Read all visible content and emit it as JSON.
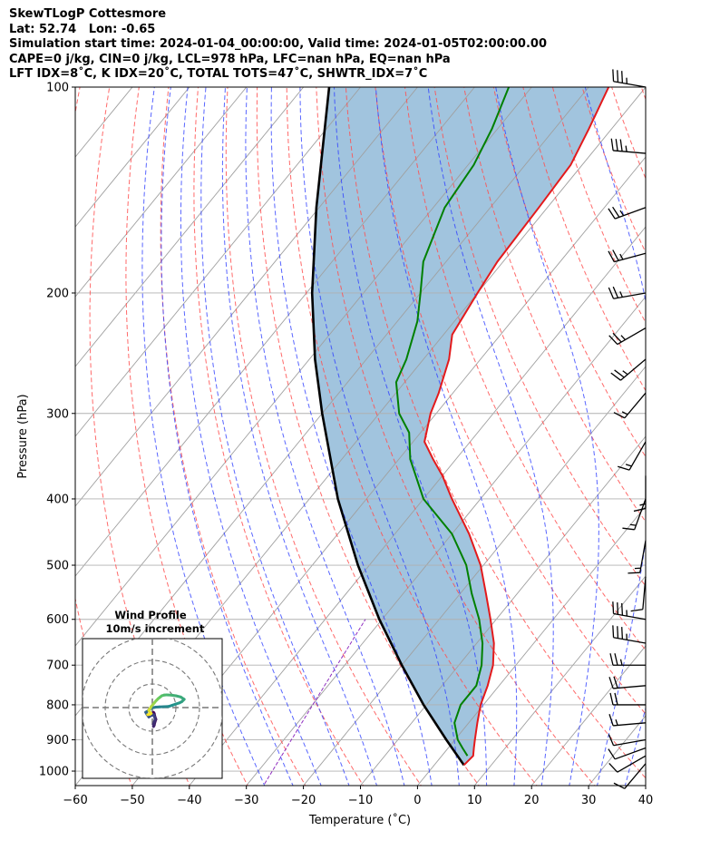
{
  "header": {
    "line1": "SkewTLogP Cottesmore",
    "line2": "Lat: 52.74   Lon: -0.65",
    "line3": "Simulation start time: 2024-01-04_00:00:00, Valid time: 2024-01-05T02:00:00.00",
    "line4": "CAPE=0 j/kg, CIN=0 j/kg, LCL=978 hPa, LFC=nan hPa, EQ=nan hPa",
    "line5": "LFT IDX=8˚C, K IDX=20˚C, TOTAL TOTS=47˚C, SHWTR_IDX=7˚C"
  },
  "colors": {
    "temperature": "#e31a1c",
    "dewpoint": "#008000",
    "parcel": "#000000",
    "shade": "#a1c4de",
    "dry_adiabat": "#ff5050",
    "moist_adiabat": "#3040ff",
    "mixing_ratio": "#9030c0",
    "isotherm": "#a0a0a0",
    "grid": "#b0b0b0"
  },
  "chart_data": {
    "type": "skewt",
    "xlabel": "Temperature (˚C)",
    "ylabel": "Pressure (hPa)",
    "xlim": [
      -60,
      40
    ],
    "ylim": [
      1050,
      100
    ],
    "x_ticks": [
      -60,
      -50,
      -40,
      -30,
      -20,
      -10,
      0,
      10,
      20,
      30,
      40
    ],
    "p_ticks": [
      1000,
      900,
      800,
      700,
      600,
      500,
      400,
      300,
      200,
      100
    ],
    "temperature": {
      "p": [
        980,
        950,
        925,
        900,
        850,
        800,
        750,
        700,
        650,
        600,
        550,
        500,
        450,
        400,
        370,
        350,
        330,
        300,
        280,
        250,
        230,
        200,
        180,
        150,
        130,
        115,
        100
      ],
      "t": [
        5.2,
        5.5,
        4.5,
        3.5,
        1.5,
        -0.5,
        -2.0,
        -4.0,
        -7.0,
        -11.0,
        -15.5,
        -20.5,
        -27.0,
        -35.0,
        -40.0,
        -44.0,
        -48.0,
        -51.0,
        -52.5,
        -55.5,
        -58.5,
        -60.0,
        -61.0,
        -61.5,
        -62.0,
        -64.0,
        -66.5
      ]
    },
    "dewpoint": {
      "p": [
        950,
        925,
        900,
        850,
        800,
        750,
        700,
        650,
        600,
        550,
        500,
        450,
        400,
        350,
        320,
        300,
        270,
        250,
        220,
        200,
        180,
        150,
        130,
        115,
        100
      ],
      "td": [
        4.5,
        2.5,
        0.5,
        -2.5,
        -4.0,
        -4.0,
        -6.0,
        -9.0,
        -13.0,
        -18.0,
        -23.0,
        -30.0,
        -40.0,
        -48.0,
        -52.0,
        -56.5,
        -61.5,
        -63.0,
        -66.5,
        -70.0,
        -74.0,
        -78.0,
        -79.0,
        -81.0,
        -84.0
      ]
    },
    "parcel": {
      "p": [
        980,
        900,
        800,
        700,
        600,
        500,
        400,
        300,
        250,
        200,
        150,
        100
      ],
      "t": [
        5.2,
        -1.5,
        -10.5,
        -20.0,
        -30.5,
        -42.0,
        -55.0,
        -70.0,
        -79.0,
        -89.0,
        -100.5,
        -115.5
      ]
    },
    "wind_barbs": [
      {
        "p": 100,
        "dir": 280,
        "kt": 35
      },
      {
        "p": 125,
        "dir": 275,
        "kt": 35
      },
      {
        "p": 150,
        "dir": 250,
        "kt": 25
      },
      {
        "p": 175,
        "dir": 255,
        "kt": 25
      },
      {
        "p": 200,
        "dir": 260,
        "kt": 25
      },
      {
        "p": 225,
        "dir": 240,
        "kt": 25
      },
      {
        "p": 250,
        "dir": 230,
        "kt": 25
      },
      {
        "p": 280,
        "dir": 220,
        "kt": 15
      },
      {
        "p": 330,
        "dir": 210,
        "kt": 15
      },
      {
        "p": 370,
        "dir": 180,
        "kt": 15
      },
      {
        "p": 400,
        "dir": 200,
        "kt": 15
      },
      {
        "p": 460,
        "dir": 190,
        "kt": 15
      },
      {
        "p": 520,
        "dir": 185,
        "kt": 10
      },
      {
        "p": 600,
        "dir": 280,
        "kt": 35
      },
      {
        "p": 650,
        "dir": 280,
        "kt": 35
      },
      {
        "p": 700,
        "dir": 270,
        "kt": 25
      },
      {
        "p": 750,
        "dir": 265,
        "kt": 20
      },
      {
        "p": 800,
        "dir": 270,
        "kt": 20
      },
      {
        "p": 850,
        "dir": 265,
        "kt": 15
      },
      {
        "p": 900,
        "dir": 260,
        "kt": 10
      },
      {
        "p": 925,
        "dir": 250,
        "kt": 10
      },
      {
        "p": 950,
        "dir": 240,
        "kt": 10
      },
      {
        "p": 975,
        "dir": 220,
        "kt": 10
      }
    ],
    "hodograph": {
      "title": "Wind Profile",
      "subtitle": "10m/s increment",
      "rings_ms": [
        10,
        20,
        30
      ],
      "u": [
        0.5,
        0.8,
        1.0,
        1.5,
        1.0,
        0.8,
        0.5,
        0.5,
        0.8,
        1.2,
        1.0,
        0.5,
        -0.8,
        -1.5,
        -1.8,
        -2.2,
        -2.5,
        -2.8,
        -2.0,
        -1.2,
        -0.5,
        0.5,
        1.5,
        3.0,
        5.0,
        7.0,
        8.5,
        10.0,
        11.5,
        12.5,
        13.0,
        13.5,
        12.0,
        10.0,
        8.0,
        6.0,
        5.0,
        4.0,
        3.5,
        3.0,
        2.5,
        2.0,
        1.5,
        1.0,
        0.5,
        0.0,
        -0.5,
        -0.8,
        -1.2,
        -1.5,
        -1.0,
        -0.5,
        -1.0,
        -2.0
      ],
      "v": [
        -2.0,
        -2.5,
        -3.5,
        -5.0,
        -6.5,
        -7.5,
        -8.0,
        -7.0,
        -6.0,
        -5.0,
        -4.0,
        -3.0,
        -3.5,
        -4.0,
        -3.5,
        -3.0,
        -2.5,
        -2.0,
        -1.5,
        -0.8,
        -0.3,
        0.0,
        0.2,
        0.3,
        0.4,
        0.5,
        1.0,
        1.5,
        2.0,
        2.5,
        3.0,
        3.5,
        4.5,
        5.0,
        5.3,
        5.4,
        5.3,
        5.0,
        4.6,
        4.2,
        3.8,
        3.3,
        2.8,
        2.2,
        1.6,
        1.0,
        0.4,
        -0.2,
        -0.6,
        -1.2,
        -2.0,
        -2.5,
        -2.8,
        -3.0
      ]
    }
  }
}
